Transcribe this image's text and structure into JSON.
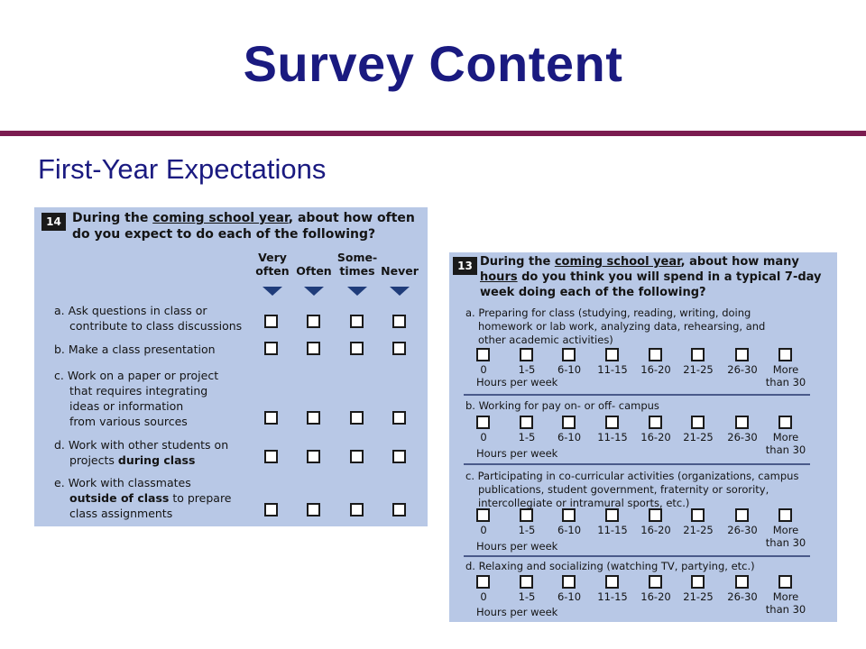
{
  "slide": {
    "title": "Survey Content",
    "subtitle": "First-Year Expectations"
  },
  "q14": {
    "number": "14",
    "prompt_parts": [
      "During the ",
      "coming school year",
      ", about how often",
      "do you expect to do each of the following?"
    ],
    "columns": [
      {
        "line1": "Very",
        "line2": "often"
      },
      {
        "line1": "",
        "line2": "Often"
      },
      {
        "line1": "Some-",
        "line2": "times"
      },
      {
        "line1": "",
        "line2": "Never"
      }
    ],
    "items": [
      {
        "lines": [
          "a. Ask questions in class or",
          "contribute to class discussions"
        ]
      },
      {
        "lines": [
          "b. Make a class presentation"
        ]
      },
      {
        "lines": [
          "c. Work on a paper or project",
          "that requires integrating",
          "ideas or information",
          "from various sources"
        ]
      },
      {
        "lines": [
          "d. Work with other students on",
          "projects ",
          "during class"
        ]
      },
      {
        "lines": [
          "e. Work with classmates",
          "outside of class",
          " to prepare",
          "class assignments"
        ]
      }
    ]
  },
  "q13": {
    "number": "13",
    "prompt_parts": [
      "During the ",
      "coming school year",
      ", about how many",
      "hours",
      " do you think you will spend in a typical 7-day",
      "week doing each of the following?"
    ],
    "options": [
      "0",
      "1-5",
      "6-10",
      "11-15",
      "16-20",
      "21-25",
      "26-30",
      "More"
    ],
    "more_line2": "than 30",
    "hours_label": "Hours per week",
    "items": [
      {
        "lines": [
          "a. Preparing for class (studying, reading, writing, doing",
          "homework or lab work, analyzing data, rehearsing, and",
          "other academic activities)"
        ]
      },
      {
        "lines": [
          "b. Working for pay on- or off- campus"
        ]
      },
      {
        "lines": [
          "c. Participating in co-curricular activities (organizations, campus",
          "publications, student government, fraternity or sorority,",
          "intercollegiate or intramural sports, etc.)"
        ]
      },
      {
        "lines": [
          "d. Relaxing and socializing (watching TV, partying, etc.)"
        ]
      }
    ]
  }
}
